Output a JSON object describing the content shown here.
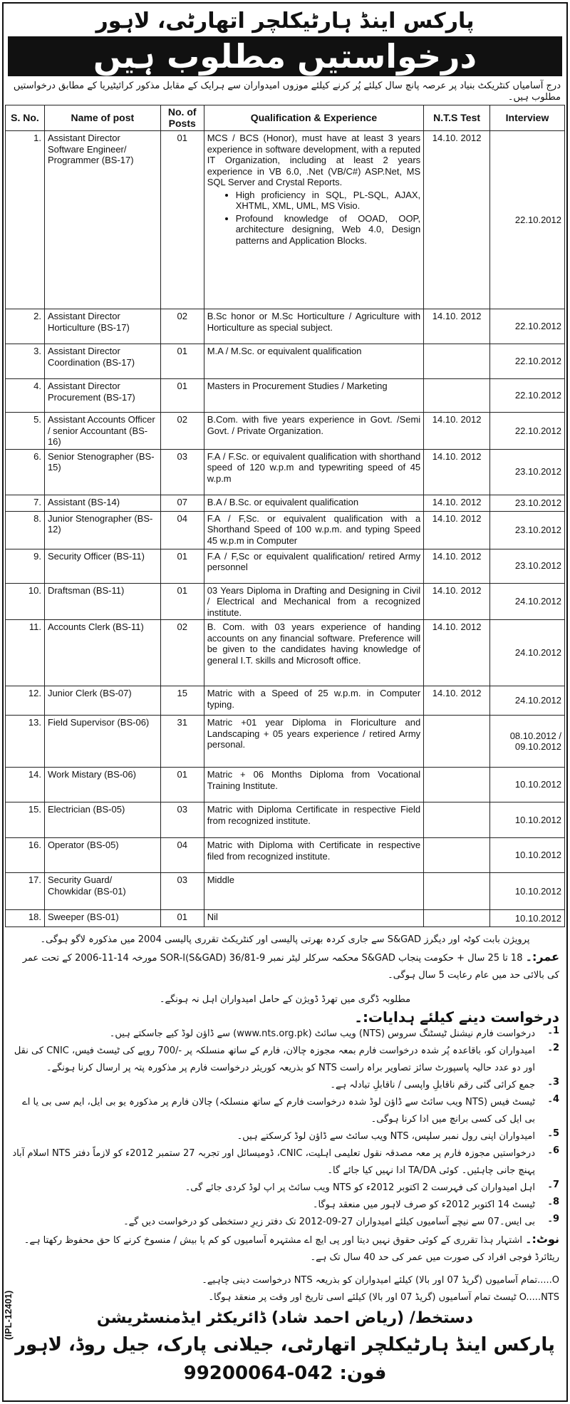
{
  "header": {
    "org_title": "پارکس اینڈ ہارٹیکلچر اتھارٹی، لاہور",
    "banner": "درخواستیں مطلوب ہیں",
    "intro": "درج آسامیاں کنٹریکٹ بنیاد پر عرصہ پانچ سال کیلئے پُر کرنے کیلئے موزوں امیدواران سے ہرایک کے مقابل مذکور کرائیٹیریا کے مطابق درخواستیں مطلوب ہیں۔"
  },
  "table": {
    "columns": [
      "S. No.",
      "Name of post",
      "No. of Posts",
      "Qualification & Experience",
      "N.T.S Test",
      "Interview"
    ],
    "rows": [
      {
        "sn": "1.",
        "name": "Assistant Director Software Engineer/ Programmer (BS-17)",
        "posts": "01",
        "qual": "MCS / BCS (Honor), must have at least 3 years experience in software development, with a reputed IT Organization, including at least 2 years experience in VB 6.0, .Net (VB/C#) ASP.Net, MS SQL Server and Crystal Reports.",
        "bullets": [
          "High proficiency in SQL, PL-SQL, AJAX, XHTML, XML, UML, MS Visio.",
          "Profound knowledge of OOAD, OOP, architecture designing, Web 4.0, Design patterns and Application Blocks."
        ],
        "nts": "14.10. 2012",
        "interview": "22.10.2012"
      },
      {
        "sn": "2.",
        "name": "Assistant Director Horticulture (BS-17)",
        "posts": "02",
        "qual": "B.Sc honor or M.Sc Horticulture / Agriculture with Horticulture as special subject.",
        "nts": "14.10. 2012",
        "interview": "22.10.2012"
      },
      {
        "sn": "3.",
        "name": "Assistant Director Coordination (BS-17)",
        "posts": "01",
        "qual": "M.A / M.Sc. or equivalent qualification",
        "nts": "",
        "interview": "22.10.2012"
      },
      {
        "sn": "4.",
        "name": "Assistant Director Procurement (BS-17)",
        "posts": "01",
        "qual": "Masters in Procurement Studies / Marketing",
        "nts": "",
        "interview": "22.10.2012"
      },
      {
        "sn": "5.",
        "name": "Assistant Accounts Officer / senior Accountant (BS-16)",
        "posts": "02",
        "qual": "B.Com. with five years experience in Govt. /Semi Govt. / Private Organization.",
        "nts": "14.10. 2012",
        "interview": "22.10.2012"
      },
      {
        "sn": "6.",
        "name": "Senior Stenographer (BS-15)",
        "posts": "03",
        "qual": "F.A / F.Sc. or equivalent qualification with shorthand speed of 120 w.p.m and typewriting speed of 45 w.p.m",
        "nts": "14.10. 2012",
        "interview": "23.10.2012"
      },
      {
        "sn": "7.",
        "name": "Assistant (BS-14)",
        "posts": "07",
        "qual": "B.A / B.Sc. or equivalent qualification",
        "nts": "14.10. 2012",
        "interview": "23.10.2012"
      },
      {
        "sn": "8.",
        "name": "Junior Stenographer (BS-12)",
        "posts": "04",
        "qual": "F.A / F,Sc. or equivalent qualification with a Shorthand Speed of 100 w.p.m. and typing Speed 45 w.p.m in Computer",
        "nts": "14.10. 2012",
        "interview": "23.10.2012"
      },
      {
        "sn": "9.",
        "name": "Security Officer (BS-11)",
        "posts": "01",
        "qual": "F.A / F,Sc or equivalent qualification/ retired Army personnel",
        "nts": "14.10. 2012",
        "interview": "23.10.2012"
      },
      {
        "sn": "10.",
        "name": "Draftsman (BS-11)",
        "posts": "01",
        "qual": "03 Years Diploma in Drafting and Designing in Civil / Electrical and Mechanical from a recognized institute.",
        "nts": "14.10. 2012",
        "interview": "24.10.2012"
      },
      {
        "sn": "11.",
        "name": "Accounts Clerk (BS-11)",
        "posts": "02",
        "qual": "B. Com. with 03 years experience of handing accounts on any financial software. Preference will be given to the candidates having knowledge of general I.T. skills and Microsoft office.",
        "nts": "14.10. 2012",
        "interview": "24.10.2012"
      },
      {
        "sn": "12.",
        "name": "Junior Clerk (BS-07)",
        "posts": "15",
        "qual": "Matric with a Speed of 25 w.p.m. in Computer typing.",
        "nts": "14.10. 2012",
        "interview": "24.10.2012"
      },
      {
        "sn": "13.",
        "name": "Field Supervisor (BS-06)",
        "posts": "31",
        "qual": "Matric +01 year Diploma in Floriculture and Landscaping + 05 years experience / retired Army personal.",
        "nts": "",
        "interview": "08.10.2012 / 09.10.2012"
      },
      {
        "sn": "14.",
        "name": "Work Mistary (BS-06)",
        "posts": "01",
        "qual": "Matric + 06 Months Diploma from Vocational Training Institute.",
        "nts": "",
        "interview": "10.10.2012"
      },
      {
        "sn": "15.",
        "name": "Electrician (BS-05)",
        "posts": "03",
        "qual": "Matric with Diploma Certificate in respective Field from recognized institute.",
        "nts": "",
        "interview": "10.10.2012"
      },
      {
        "sn": "16.",
        "name": "Operator (BS-05)",
        "posts": "04",
        "qual": "Matric with Diploma with Certificate in respective filed from recognized institute.",
        "nts": "",
        "interview": "10.10.2012"
      },
      {
        "sn": "17.",
        "name": "Security Guard/ Chowkidar (BS-01)",
        "posts": "03",
        "qual": "Middle",
        "nts": "",
        "interview": "10.10.2012"
      },
      {
        "sn": "18.",
        "name": "Sweeper (BS-01)",
        "posts": "01",
        "qual": "Nil",
        "nts": "",
        "interview": "10.10.2012"
      }
    ]
  },
  "notes": {
    "provision": "پرویژن بابت کوٹہ اور دیگرز S&GAD سے جاری کردہ بھرتی پالیسی اور کنٹریکٹ تقرری پالیسی 2004 میں مذکورہ لاگو ہوگی۔",
    "age_label": "عمر:۔",
    "age": "18 تا 25 سال + حکومت پنجاب S&GAD محکمہ سرکلر لیٹر نمبر 9-36/81 SOR-I(S&GAD) مورخہ 14-11-2006 کے تحت عمر کی بالائی حد میں عام رعایت 5 سال ہوگی۔",
    "third_division": "مطلوبہ ڈگری میں تھرڈ ڈویژن کے حامل امیدواران اہل نہ ہونگے۔",
    "instructions_heading": "درخواست دینے کیلئے ہدایات:۔",
    "instructions": [
      {
        "num": "1۔",
        "text": "درخواست فارم نیشنل ٹیسٹنگ سروس (NTS) ویب سائٹ (www.nts.org.pk) سے ڈاؤن لوڈ کیے جاسکتے ہیں۔"
      },
      {
        "num": "2۔",
        "text": "امیدواران کو، باقاعدہ پُر شدہ درخواست فارم بمعہ مجوزہ چالان، فارم کے ساتھ منسلکہ پر -/700 روپے کی ٹیسٹ فیس، CNIC کی نقل اور دو عدد حالیہ پاسپورٹ سائز تصاویر براہ راست NTS کو بذریعہ کوریئر درخواست فارم پر مذکورہ پتہ پر ارسال کرنا ہونگے۔"
      },
      {
        "num": "3۔",
        "text": "جمع کرائی گئی رقم ناقابلِ واپسی / ناقابلِ تبادلہ ہے۔"
      },
      {
        "num": "4۔",
        "text": "ٹیسٹ فیس (NTS ویب سائٹ سے ڈاؤن لوڈ شدہ درخواست فارم کے ساتھ منسلکہ) چالان فارم پر مذکورہ یو بی ایل، ایم سی بی یا اے بی ایل کی کسی برانچ میں ادا کرنا ہوگی۔"
      },
      {
        "num": "5۔",
        "text": "امیدواران اپنی رول نمبر سلپس، NTS ویب سائٹ سے ڈاؤن لوڈ کرسکتے ہیں۔"
      },
      {
        "num": "6۔",
        "text": "درخواستیں مجوزہ فارم پر معہ مصدقہ نقول تعلیمی اہلیت، CNIC، ڈومیسائل اور تجربہ 27 ستمبر 2012ء کو لازماً دفتر NTS اسلام آباد پہنچ جانی چاہئیں۔ کوئی TA/DA ادا نہیں کیا جائے گا۔"
      },
      {
        "num": "7۔",
        "text": "اہل امیدواران کی فہرست 2 اکتوبر 2012ء کو NTS ویب سائٹ پر اپ لوڈ کردی جائے گی۔"
      },
      {
        "num": "8۔",
        "text": "ٹیسٹ 14 اکتوبر 2012ء کو صرف لاہور میں منعقد ہوگا۔"
      },
      {
        "num": "9۔",
        "text": "بی ایس۔07 سے نیچے آسامیوں کیلئے امیدواران 27-09-2012 تک دفتر زیرِ دستخطی کو درخواست دیں گے۔"
      }
    ],
    "note_label": "نوٹ:۔",
    "note": "اشتہار ہذا تقرری کے کوئی حقوق نہیں دیتا اور پی ایچ اے مشتہرہ آسامیوں کو کم یا بیش / منسوخ کرنے کا حق محفوظ رکھتا ہے۔ ریٹائرڈ فوجی افراد کی صورت میں عمر کی حد 40 سال تک ہے۔",
    "bullets": [
      "O.....تمام آسامیوں (گریڈ 07 اور بالا) کیلئے امیدواران کو بذریعہ NTS درخواست دینی چاہیے۔",
      "O.....NTS ٹیسٹ تمام آسامیوں (گریڈ 07 اور بالا) کیلئے اسی تاریخ اور وقت پر منعقد ہوگا۔"
    ]
  },
  "footer": {
    "signature": "دستخط/ (ریاض احمد شاد) ڈائریکٹر ایڈمنسٹریشن",
    "address": "پارکس اینڈ ہارٹیکلچر اتھارٹی، جیلانی پارک، جیل روڈ، لاہور فون: 042-99200064",
    "ref": "(IPL-12401)"
  }
}
